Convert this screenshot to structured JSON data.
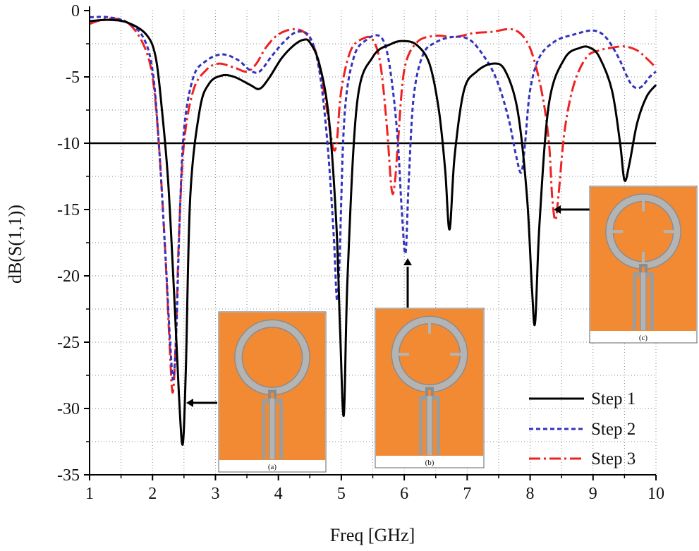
{
  "chart_data": {
    "type": "line",
    "title": "",
    "xlabel": "Freq [GHz]",
    "ylabel": "dB(S(1,1))",
    "xlim": [
      1,
      10
    ],
    "ylim": [
      -35,
      0
    ],
    "xticks": [
      1,
      2,
      3,
      4,
      5,
      6,
      7,
      8,
      9,
      10
    ],
    "yticks": [
      0,
      -5,
      -10,
      -15,
      -20,
      -25,
      -30,
      -35
    ],
    "xtick_labels": [
      "1",
      "2",
      "3",
      "4",
      "5",
      "6",
      "7",
      "8",
      "9",
      "10"
    ],
    "ytick_labels": [
      "0",
      "-5",
      "-10",
      "-15",
      "-20",
      "-25",
      "-30",
      "-35"
    ],
    "reference_line": {
      "y": -10
    },
    "legend_position": "bottom-right",
    "series": [
      {
        "name": "Step 1",
        "color": "#000000",
        "style": "solid",
        "x": [
          1.0,
          1.3,
          1.6,
          1.9,
          2.05,
          2.15,
          2.25,
          2.35,
          2.42,
          2.48,
          2.53,
          2.6,
          2.75,
          2.9,
          3.1,
          3.3,
          3.55,
          3.7,
          3.85,
          4.05,
          4.25,
          4.4,
          4.5,
          4.65,
          4.8,
          4.92,
          4.98,
          5.04,
          5.1,
          5.25,
          5.5,
          5.8,
          6.0,
          6.2,
          6.4,
          6.55,
          6.65,
          6.72,
          6.8,
          6.95,
          7.15,
          7.4,
          7.6,
          7.8,
          7.95,
          8.03,
          8.08,
          8.15,
          8.3,
          8.55,
          8.8,
          8.95,
          9.1,
          9.3,
          9.43,
          9.5,
          9.58,
          9.7,
          9.85,
          10.0
        ],
        "y": [
          -0.8,
          -0.7,
          -0.9,
          -1.8,
          -3.5,
          -7.5,
          -13.0,
          -22.0,
          -29.0,
          -32.7,
          -27.0,
          -14.0,
          -7.5,
          -5.5,
          -4.9,
          -5.0,
          -5.6,
          -5.9,
          -5.1,
          -3.6,
          -2.6,
          -2.2,
          -2.4,
          -4.0,
          -8.0,
          -16.0,
          -24.0,
          -30.5,
          -20.0,
          -7.0,
          -3.5,
          -2.5,
          -2.3,
          -2.6,
          -4.0,
          -7.5,
          -12.0,
          -16.5,
          -11.0,
          -6.0,
          -4.6,
          -4.0,
          -4.5,
          -7.5,
          -14.0,
          -21.0,
          -23.5,
          -16.0,
          -7.0,
          -3.6,
          -2.8,
          -2.8,
          -3.5,
          -6.0,
          -10.0,
          -12.8,
          -11.5,
          -8.5,
          -6.5,
          -5.6
        ]
      },
      {
        "name": "Step 2",
        "color": "#3333bb",
        "style": "dashed",
        "x": [
          1.0,
          1.3,
          1.6,
          1.85,
          2.0,
          2.1,
          2.2,
          2.28,
          2.33,
          2.38,
          2.43,
          2.5,
          2.65,
          2.85,
          3.1,
          3.35,
          3.55,
          3.7,
          3.9,
          4.1,
          4.3,
          4.5,
          4.65,
          4.78,
          4.88,
          4.93,
          4.97,
          5.05,
          5.2,
          5.4,
          5.6,
          5.72,
          5.82,
          5.9,
          5.96,
          6.02,
          6.07,
          6.15,
          6.3,
          6.5,
          6.75,
          7.0,
          7.2,
          7.45,
          7.65,
          7.78,
          7.86,
          7.92,
          8.0,
          8.15,
          8.4,
          8.7,
          9.0,
          9.2,
          9.4,
          9.6,
          9.75,
          9.9,
          10.0
        ],
        "y": [
          -0.5,
          -0.5,
          -0.9,
          -2.0,
          -4.5,
          -10.0,
          -18.0,
          -25.0,
          -27.8,
          -24.0,
          -16.0,
          -9.0,
          -5.0,
          -3.8,
          -3.3,
          -3.7,
          -4.5,
          -4.6,
          -3.4,
          -2.3,
          -1.6,
          -2.0,
          -4.5,
          -10.0,
          -17.0,
          -21.8,
          -19.0,
          -8.0,
          -3.5,
          -2.2,
          -1.9,
          -3.0,
          -6.0,
          -10.0,
          -15.0,
          -18.3,
          -13.0,
          -6.5,
          -3.3,
          -2.4,
          -2.0,
          -2.1,
          -3.0,
          -5.0,
          -8.0,
          -11.0,
          -12.2,
          -10.0,
          -6.0,
          -3.5,
          -2.3,
          -1.8,
          -1.5,
          -2.0,
          -3.5,
          -5.5,
          -5.8,
          -5.0,
          -4.6
        ]
      },
      {
        "name": "Step 3",
        "color": "#ee2222",
        "style": "dashdot",
        "x": [
          1.0,
          1.3,
          1.6,
          1.85,
          2.0,
          2.1,
          2.2,
          2.27,
          2.32,
          2.37,
          2.42,
          2.5,
          2.65,
          2.85,
          3.05,
          3.3,
          3.5,
          3.65,
          3.8,
          4.0,
          4.25,
          4.45,
          4.6,
          4.72,
          4.82,
          4.88,
          4.93,
          5.0,
          5.15,
          5.35,
          5.5,
          5.62,
          5.72,
          5.8,
          5.85,
          5.9,
          6.0,
          6.2,
          6.5,
          6.8,
          7.1,
          7.4,
          7.7,
          7.9,
          8.05,
          8.2,
          8.3,
          8.35,
          8.4,
          8.45,
          8.55,
          8.7,
          8.9,
          9.1,
          9.3,
          9.5,
          9.7,
          9.85,
          10.0
        ],
        "y": [
          -1.0,
          -0.6,
          -0.9,
          -2.5,
          -5.0,
          -10.0,
          -18.0,
          -25.0,
          -28.8,
          -25.0,
          -17.0,
          -10.0,
          -6.0,
          -4.5,
          -4.0,
          -4.3,
          -4.6,
          -4.0,
          -2.8,
          -1.8,
          -1.4,
          -1.8,
          -3.2,
          -6.0,
          -9.0,
          -10.5,
          -9.8,
          -6.0,
          -3.0,
          -2.1,
          -2.2,
          -4.0,
          -8.5,
          -13.5,
          -13.0,
          -10.0,
          -4.5,
          -2.4,
          -1.9,
          -2.0,
          -1.7,
          -1.6,
          -1.4,
          -2.0,
          -3.5,
          -6.5,
          -10.0,
          -14.0,
          -15.8,
          -14.0,
          -9.0,
          -5.5,
          -3.5,
          -3.0,
          -2.8,
          -2.7,
          -3.0,
          -3.6,
          -4.3
        ]
      }
    ],
    "insets": [
      {
        "caption": "(a)",
        "slots": 0
      },
      {
        "caption": "(b)",
        "slots": 3
      },
      {
        "caption": "(c)",
        "slots": 4
      }
    ]
  }
}
